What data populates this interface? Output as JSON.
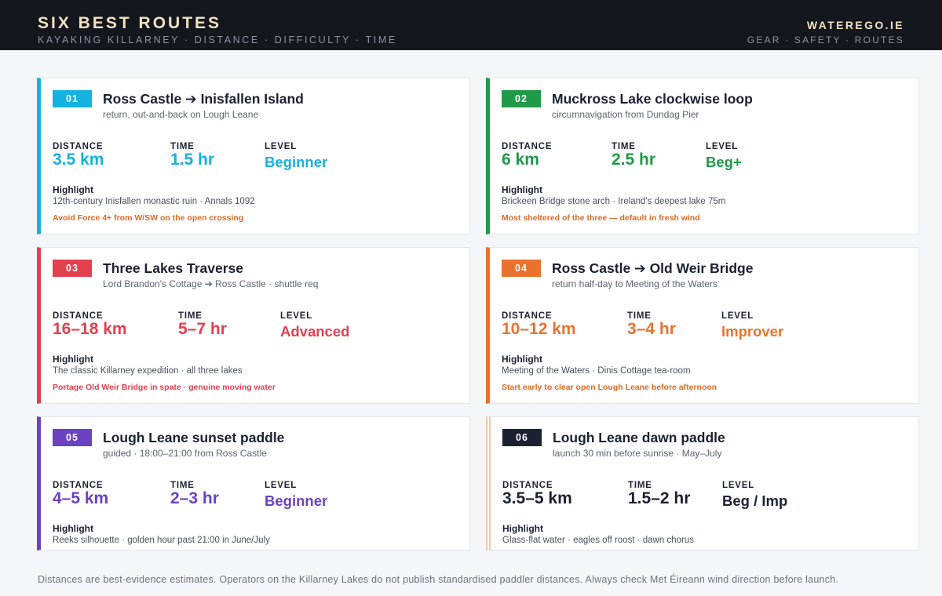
{
  "header": {
    "title": "SIX BEST ROUTES",
    "subtitle": "KAYAKING KILLARNEY · DISTANCE · DIFFICULTY · TIME",
    "site_name": "WATEREGO.IE",
    "nav": "GEAR · SAFETY · ROUTES"
  },
  "labels": {
    "distance": "DISTANCE",
    "time": "TIME",
    "level": "LEVEL",
    "highlight": "Highlight"
  },
  "colors": {
    "route_01": "#14b2e0",
    "route_02": "#1f9a48",
    "route_03": "#e2404f",
    "route_04": "#ea722d",
    "route_05": "#6a42c2",
    "route_06": "#1b2033",
    "warning_note": "#e06a24",
    "header_bg": "#14171d",
    "header_text": "#f1e2c2"
  },
  "routes": [
    {
      "number": "01",
      "title": "Ross Castle ➔ Inisfallen Island",
      "subtitle": "return, out-and-back on Lough Leane",
      "distance": "3.5 km",
      "time": "1.5 hr",
      "level": "Beginner",
      "highlight": "12th-century Inisfallen monastic ruin · Annals 1092",
      "note": "Avoid Force 4+ from W/SW on the open crossing"
    },
    {
      "number": "02",
      "title": "Muckross Lake clockwise loop",
      "subtitle": "circumnavigation from Dundag Pier",
      "distance": "6 km",
      "time": "2.5 hr",
      "level": "Beg+",
      "highlight": "Brickeen Bridge stone arch · Ireland's deepest lake 75m",
      "note": "Most sheltered of the three — default in fresh wind"
    },
    {
      "number": "03",
      "title": "Three Lakes Traverse",
      "subtitle": "Lord Brandon's Cottage ➔ Ross Castle · shuttle req",
      "distance": "16–18 km",
      "time": "5–7 hr",
      "level": "Advanced",
      "highlight": "The classic Killarney expedition · all three lakes",
      "note": "Portage Old Weir Bridge in spate · genuine moving water"
    },
    {
      "number": "04",
      "title": "Ross Castle ➔ Old Weir Bridge",
      "subtitle": "return half-day to Meeting of the Waters",
      "distance": "10–12 km",
      "time": "3–4 hr",
      "level": "Improver",
      "highlight": "Meeting of the Waters · Dinis Cottage tea-room",
      "note": "Start early to clear open Lough Leane before afternoon"
    },
    {
      "number": "05",
      "title": "Lough Leane sunset paddle",
      "subtitle": "guided · 18:00–21:00 from Ross Castle",
      "distance": "4–5 km",
      "time": "2–3 hr",
      "level": "Beginner",
      "highlight": "Reeks silhouette · golden hour past 21:00 in June/July"
    },
    {
      "number": "06",
      "title": "Lough Leane dawn paddle",
      "subtitle": "launch 30 min before sunrise · May–July",
      "distance": "3.5–5 km",
      "time": "1.5–2 hr",
      "level": "Beg / Imp",
      "highlight": "Glass-flat water · eagles off roost · dawn chorus"
    }
  ],
  "footer": "Distances are best-evidence estimates. Operators on the Killarney Lakes do not publish standardised paddler distances. Always check Met Éireann wind direction before launch."
}
